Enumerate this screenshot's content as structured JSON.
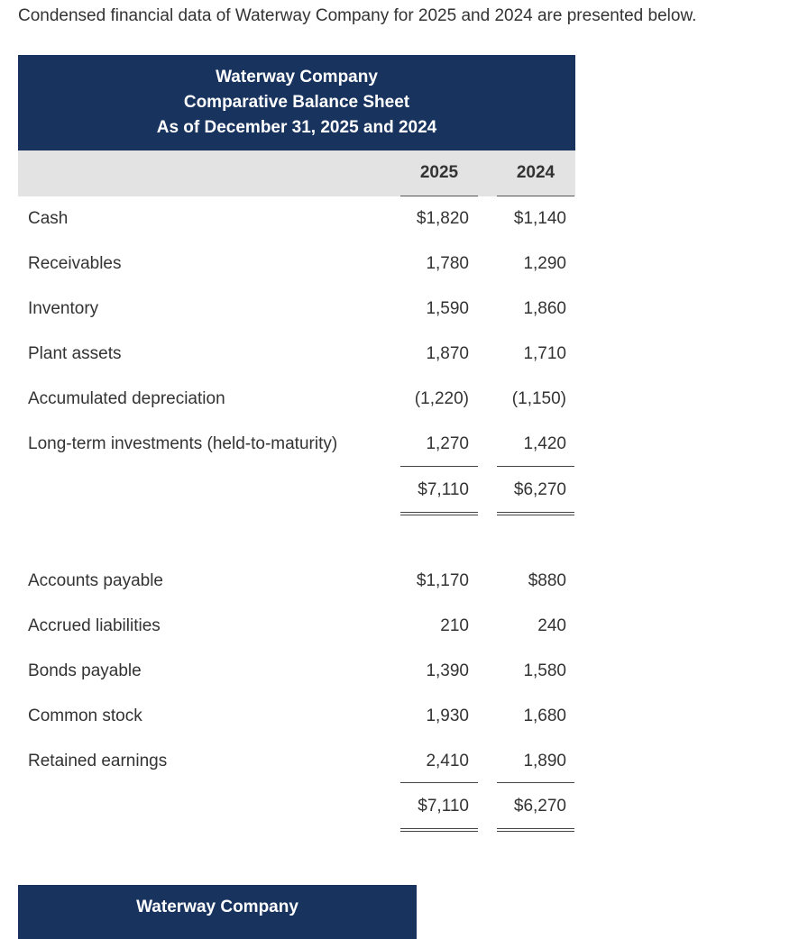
{
  "intro": "Condensed financial data of Waterway Company for 2025 and 2024 are presented below.",
  "header": {
    "company": "Waterway Company",
    "statement": "Comparative Balance Sheet",
    "date": "As of December 31, 2025 and 2024"
  },
  "years": [
    "2025",
    "2024"
  ],
  "assets": [
    {
      "label": "Cash",
      "y2025": "$1,820",
      "y2024": "$1,140"
    },
    {
      "label": "Receivables",
      "y2025": "1,780",
      "y2024": "1,290"
    },
    {
      "label": "Inventory",
      "y2025": "1,590",
      "y2024": "1,860"
    },
    {
      "label": "Plant assets",
      "y2025": "1,870",
      "y2024": "1,710"
    },
    {
      "label": "Accumulated depreciation",
      "y2025": "(1,220)",
      "y2024": "(1,150)"
    },
    {
      "label": "Long-term investments (held-to-maturity)",
      "y2025": "1,270",
      "y2024": "1,420"
    }
  ],
  "assets_total": {
    "y2025": "$7,110",
    "y2024": "$6,270"
  },
  "liabilities": [
    {
      "label": "Accounts payable",
      "y2025": "$1,170",
      "y2024": "$880"
    },
    {
      "label": "Accrued liabilities",
      "y2025": "210",
      "y2024": "240"
    },
    {
      "label": "Bonds payable",
      "y2025": "1,390",
      "y2024": "1,580"
    },
    {
      "label": "Common stock",
      "y2025": "1,930",
      "y2024": "1,680"
    },
    {
      "label": "Retained earnings",
      "y2025": "2,410",
      "y2024": "1,890"
    }
  ],
  "liabilities_total": {
    "y2025": "$7,110",
    "y2024": "$6,270"
  },
  "next_statement": {
    "company": "Waterway Company"
  }
}
